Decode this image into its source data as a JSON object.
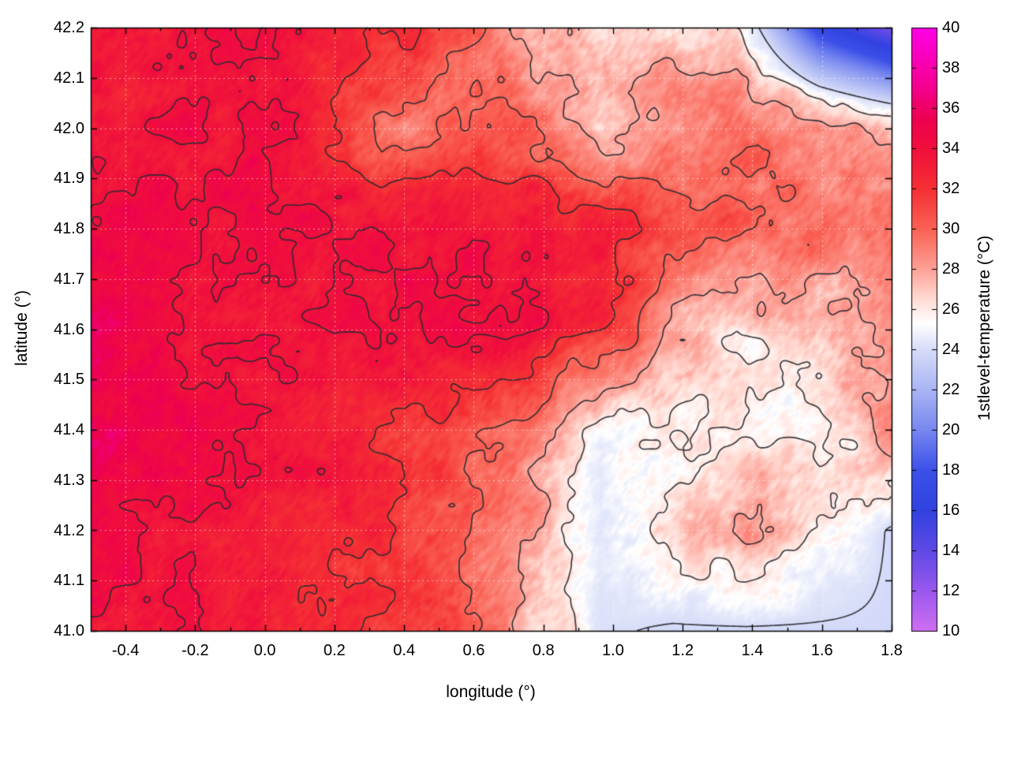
{
  "figure": {
    "background": "#ffffff"
  },
  "chart_data": {
    "type": "heatmap",
    "title": "",
    "xlabel": "longitude (°)",
    "ylabel": "latitude (°)",
    "colorbar_label": "1stlevel-temperature (°C)",
    "x_range": [
      -0.5,
      1.8
    ],
    "y_range": [
      41.0,
      42.2
    ],
    "x_ticks": [
      {
        "value": -0.4,
        "label": "-0.4"
      },
      {
        "value": -0.2,
        "label": "-0.2"
      },
      {
        "value": 0.0,
        "label": "0.0"
      },
      {
        "value": 0.2,
        "label": "0.2"
      },
      {
        "value": 0.4,
        "label": "0.4"
      },
      {
        "value": 0.6,
        "label": "0.6"
      },
      {
        "value": 0.8,
        "label": "0.8"
      },
      {
        "value": 1.0,
        "label": "1.0"
      },
      {
        "value": 1.2,
        "label": "1.2"
      },
      {
        "value": 1.4,
        "label": "1.4"
      },
      {
        "value": 1.6,
        "label": "1.6"
      },
      {
        "value": 1.8,
        "label": "1.8"
      }
    ],
    "x_minor_step": 0.1,
    "y_ticks": [
      {
        "value": 41.0,
        "label": "41.0"
      },
      {
        "value": 41.1,
        "label": "41.1"
      },
      {
        "value": 41.2,
        "label": "41.2"
      },
      {
        "value": 41.3,
        "label": "41.3"
      },
      {
        "value": 41.4,
        "label": "41.4"
      },
      {
        "value": 41.5,
        "label": "41.5"
      },
      {
        "value": 41.6,
        "label": "41.6"
      },
      {
        "value": 41.7,
        "label": "41.7"
      },
      {
        "value": 41.8,
        "label": "41.8"
      },
      {
        "value": 41.9,
        "label": "41.9"
      },
      {
        "value": 42.0,
        "label": "42.0"
      },
      {
        "value": 42.1,
        "label": "42.1"
      },
      {
        "value": 42.2,
        "label": "42.2"
      }
    ],
    "colorbar_range": [
      10,
      40
    ],
    "colorbar_ticks": [
      {
        "value": 10,
        "label": "10"
      },
      {
        "value": 12,
        "label": "12"
      },
      {
        "value": 14,
        "label": "14"
      },
      {
        "value": 16,
        "label": "16"
      },
      {
        "value": 18,
        "label": "18"
      },
      {
        "value": 20,
        "label": "20"
      },
      {
        "value": 22,
        "label": "22"
      },
      {
        "value": 24,
        "label": "24"
      },
      {
        "value": 26,
        "label": "26"
      },
      {
        "value": 28,
        "label": "28"
      },
      {
        "value": 30,
        "label": "30"
      },
      {
        "value": 32,
        "label": "32"
      },
      {
        "value": 34,
        "label": "34"
      },
      {
        "value": 36,
        "label": "36"
      },
      {
        "value": 38,
        "label": "38"
      },
      {
        "value": 40,
        "label": "40"
      }
    ],
    "contour_levels": [
      24,
      26,
      28,
      30,
      32,
      34
    ],
    "contour_color": "rgba(42,42,48,0.92)",
    "grid_dotted_color": "rgba(255,255,255,0.55)",
    "palette_stops": [
      [
        10.0,
        "#cf6ef2"
      ],
      [
        12.0,
        "#9a58ee"
      ],
      [
        14.0,
        "#5f49e6"
      ],
      [
        16.0,
        "#3142e0"
      ],
      [
        18.0,
        "#3c50e8"
      ],
      [
        20.0,
        "#7787f0"
      ],
      [
        22.0,
        "#a9b4f4"
      ],
      [
        24.0,
        "#d6dcf8"
      ],
      [
        25.3,
        "#ffffff"
      ],
      [
        26.6,
        "#ffd8d0"
      ],
      [
        28.0,
        "#fda096"
      ],
      [
        30.0,
        "#fa6255"
      ],
      [
        32.0,
        "#f52f34"
      ],
      [
        34.0,
        "#f00f3c"
      ],
      [
        35.5,
        "#ee0050"
      ],
      [
        37.0,
        "#f4008e"
      ],
      [
        40.0,
        "#ff00e6"
      ]
    ],
    "temperature_grid": {
      "units": "°C",
      "lon_range": [
        -0.5,
        1.8
      ],
      "lat_range_top_to_bottom": [
        42.2,
        41.0
      ],
      "values": [
        [
          33.0,
          33.0,
          33.5,
          33.0,
          32.5,
          31.0,
          28.0,
          26.5,
          27.0,
          25.5,
          17.0,
          13.0
        ],
        [
          33.5,
          34.0,
          34.0,
          33.5,
          29.0,
          29.5,
          30.0,
          27.0,
          29.0,
          30.0,
          29.0,
          27.5
        ],
        [
          34.5,
          34.0,
          34.0,
          34.0,
          34.0,
          34.0,
          33.5,
          33.0,
          31.0,
          30.0,
          29.5,
          29.5
        ],
        [
          35.0,
          34.5,
          34.0,
          34.0,
          34.0,
          34.5,
          34.0,
          32.0,
          28.0,
          26.5,
          27.0,
          28.5
        ],
        [
          35.5,
          34.5,
          34.0,
          33.5,
          32.5,
          31.0,
          29.0,
          25.0,
          25.5,
          26.0,
          25.5,
          28.5
        ],
        [
          35.0,
          34.0,
          33.5,
          33.0,
          32.0,
          30.5,
          28.5,
          24.5,
          26.5,
          28.5,
          26.0,
          23.8
        ],
        [
          34.0,
          33.5,
          33.0,
          32.5,
          31.5,
          31.0,
          27.0,
          24.2,
          23.8,
          23.8,
          23.8,
          23.8
        ]
      ]
    },
    "noise": {
      "medium_amp": 0.85,
      "fine_amp": 0.55
    }
  }
}
